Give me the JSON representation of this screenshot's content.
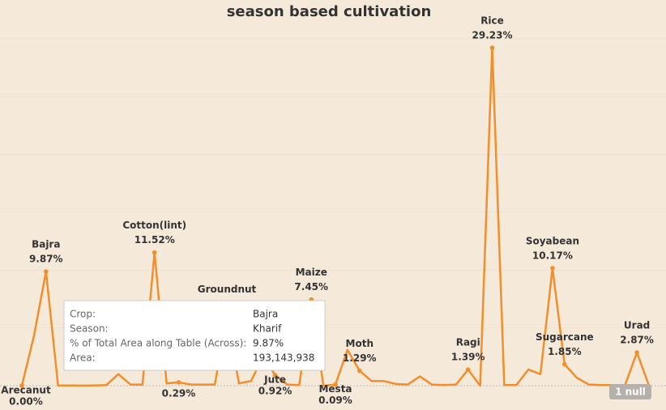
{
  "chart_data": {
    "type": "line",
    "title": "season based cultivation",
    "categories": [
      "Arecanut",
      null,
      "Bajra",
      null,
      null,
      null,
      null,
      null,
      null,
      null,
      null,
      "Cotton(lint)",
      null,
      null,
      null,
      null,
      null,
      "Groundnut",
      null,
      null,
      null,
      "Jute",
      null,
      null,
      "Maize",
      null,
      "Mesta",
      null,
      "Moth",
      null,
      null,
      null,
      null,
      null,
      null,
      null,
      null,
      "Ragi",
      null,
      "Rice",
      null,
      null,
      null,
      null,
      "Soyabean",
      "Sugarcane",
      null,
      null,
      null,
      null,
      null,
      "Urad",
      null
    ],
    "series": [
      {
        "name": null,
        "color": "#f28e2b",
        "values": [
          0,
          4.3,
          9.87,
          0.02,
          0.02,
          0.01,
          0.02,
          0.05,
          1.0,
          0.1,
          0.1,
          11.52,
          0.2,
          0.29,
          0.1,
          0.1,
          0.1,
          6.0,
          0.2,
          0.4,
          2.5,
          0.92,
          0.1,
          0.05,
          7.45,
          0,
          0.09,
          3.1,
          1.29,
          0.4,
          0.4,
          0.15,
          0.1,
          0.8,
          0.1,
          0.05,
          0.1,
          1.39,
          0,
          29.23,
          0.05,
          0.05,
          1.4,
          1.0,
          10.17,
          1.85,
          0.7,
          0.1,
          0.05,
          0.05,
          0.02,
          2.87,
          0
        ],
        "value_labels": [
          "0.00%",
          null,
          "9.87%",
          null,
          null,
          null,
          null,
          null,
          null,
          null,
          null,
          "11.52%",
          null,
          "0.29%",
          null,
          null,
          null,
          null,
          null,
          null,
          null,
          "0.92%",
          null,
          null,
          "7.45%",
          null,
          "0.09%",
          null,
          "1.29%",
          null,
          null,
          null,
          null,
          null,
          null,
          null,
          null,
          "1.39%",
          null,
          "29.23%",
          null,
          null,
          null,
          null,
          "10.17%",
          "1.85%",
          null,
          null,
          null,
          null,
          null,
          "2.87%",
          null
        ]
      }
    ],
    "ylim": [
      0,
      30.7
    ],
    "yticks": [
      0,
      5,
      10,
      15,
      20,
      25,
      30
    ],
    "grid": true,
    "null_indicator": "1 null",
    "tooltip": {
      "rows": [
        [
          "Crop:",
          "Bajra"
        ],
        [
          "Season:",
          "Kharif"
        ],
        [
          "% of Total Area along Table (Across):",
          "9.87%"
        ],
        [
          "Area:",
          "193,143,938"
        ]
      ]
    }
  }
}
